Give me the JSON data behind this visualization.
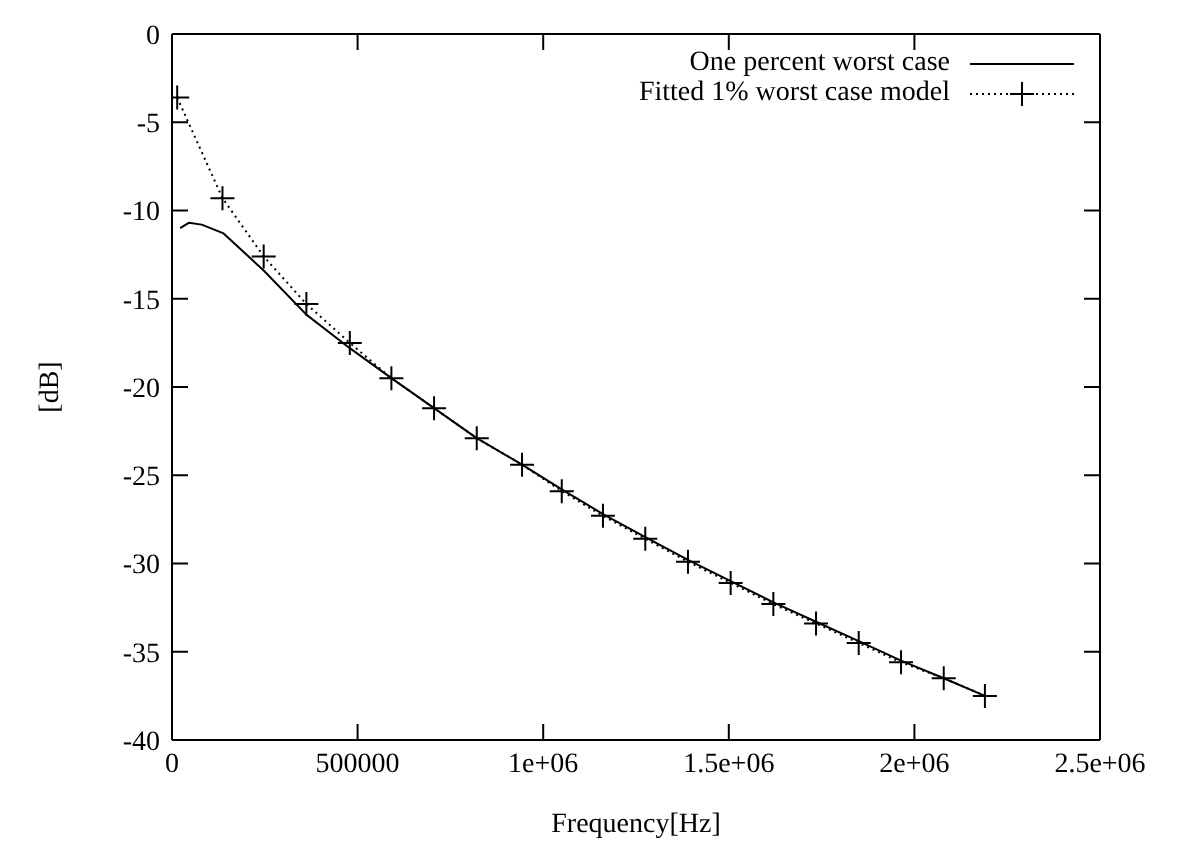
{
  "chart_data": {
    "type": "line",
    "xlabel": "Frequency[Hz]",
    "ylabel": "[dB]",
    "xlim": [
      0,
      2500000
    ],
    "xticks": [
      0,
      500000,
      {
        "value": 1000000,
        "label": "1e+06"
      },
      {
        "value": 1500000,
        "label": "1.5e+06"
      },
      {
        "value": 2000000,
        "label": "2e+06"
      },
      {
        "value": 2500000,
        "label": "2.5e+06"
      }
    ],
    "ylim": [
      -40,
      0
    ],
    "yticks": [
      -40,
      -35,
      -30,
      -25,
      -20,
      -15,
      -10,
      -5,
      0
    ],
    "grid": false,
    "legend": "top right",
    "series": [
      {
        "name": "One percent worst case",
        "color": "#000000",
        "line_style": "solid",
        "marker": "none",
        "x": [
          22000,
          45000,
          80000,
          139000,
          247000,
          362000,
          479000,
          591000,
          706000,
          821000,
          943000,
          1050000,
          1161000,
          1275000,
          1390000,
          1505000,
          1620000,
          1735000,
          1850000,
          1964000,
          2079000,
          2190000
        ],
        "values": [
          -11.0,
          -10.7,
          -10.8,
          -11.3,
          -13.4,
          -15.9,
          -17.8,
          -19.5,
          -21.2,
          -22.9,
          -24.4,
          -25.8,
          -27.2,
          -28.5,
          -29.8,
          -31.0,
          -32.2,
          -33.3,
          -34.4,
          -35.5,
          -36.5,
          -37.5
        ]
      },
      {
        "name": "Fitted 1% worst case model",
        "color": "#000000",
        "line_style": "dotted",
        "marker": "cross",
        "x": [
          14000,
          136000,
          247000,
          362000,
          479000,
          591000,
          706000,
          821000,
          943000,
          1050000,
          1161000,
          1275000,
          1390000,
          1505000,
          1620000,
          1735000,
          1850000,
          1964000,
          2079000,
          2190000
        ],
        "values": [
          -3.6,
          -9.3,
          -12.6,
          -15.3,
          -17.5,
          -19.5,
          -21.2,
          -22.9,
          -24.4,
          -25.9,
          -27.3,
          -28.6,
          -29.9,
          -31.1,
          -32.3,
          -33.4,
          -34.5,
          -35.6,
          -36.5,
          -37.5
        ]
      }
    ]
  }
}
